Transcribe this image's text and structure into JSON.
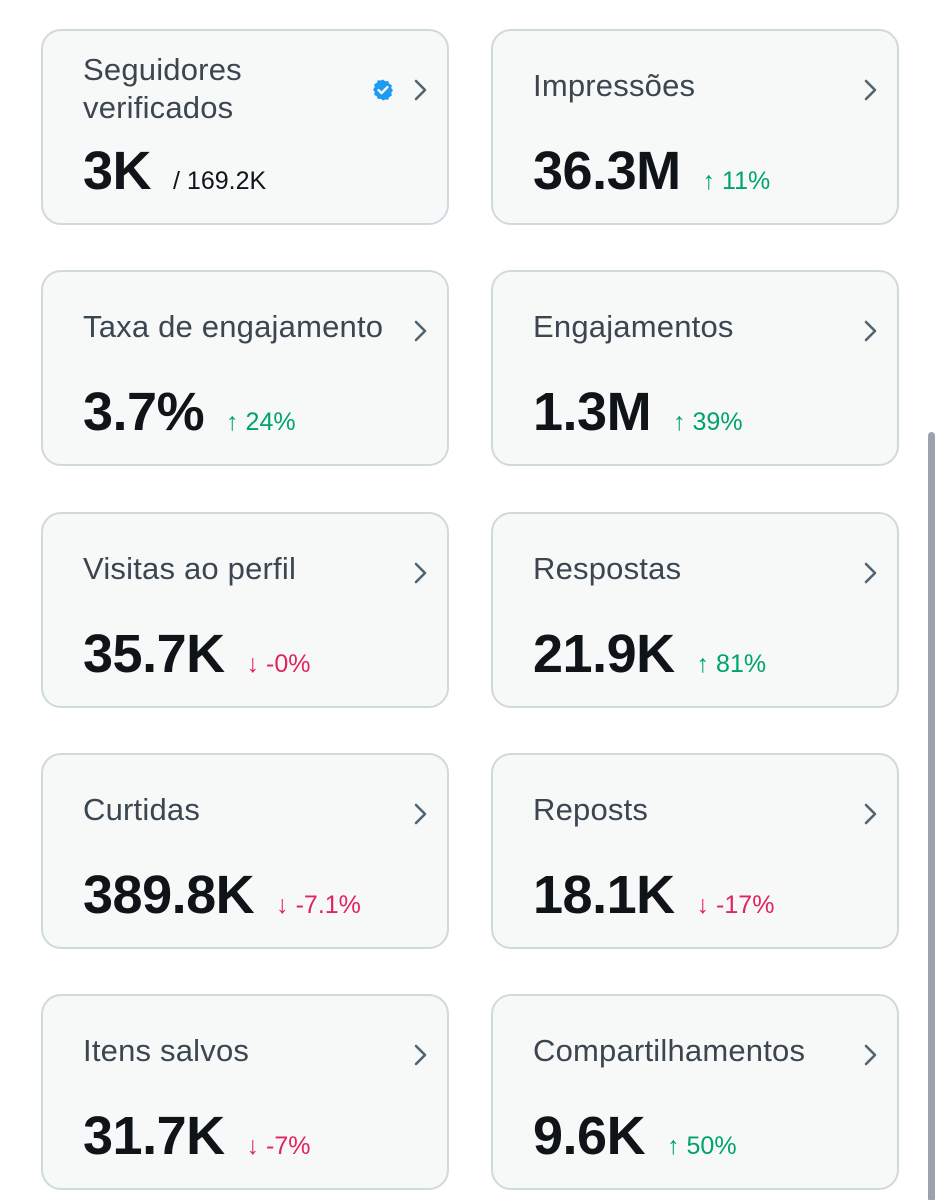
{
  "cards": [
    {
      "title": "Seguidores verificados",
      "value": "3K",
      "sub": "/ 169.2K",
      "change": "",
      "direction": "",
      "verified": true
    },
    {
      "title": "Impressões",
      "value": "36.3M",
      "sub": "",
      "change": "↑ 11%",
      "direction": "up"
    },
    {
      "title": "Taxa de engajamento",
      "value": "3.7%",
      "sub": "",
      "change": "↑ 24%",
      "direction": "up"
    },
    {
      "title": "Engajamentos",
      "value": "1.3M",
      "sub": "",
      "change": "↑ 39%",
      "direction": "up"
    },
    {
      "title": "Visitas ao perfil",
      "value": "35.7K",
      "sub": "",
      "change": "↓ -0%",
      "direction": "down"
    },
    {
      "title": "Respostas",
      "value": "21.9K",
      "sub": "",
      "change": "↑ 81%",
      "direction": "up"
    },
    {
      "title": "Curtidas",
      "value": "389.8K",
      "sub": "",
      "change": "↓ -7.1%",
      "direction": "down"
    },
    {
      "title": "Reposts",
      "value": "18.1K",
      "sub": "",
      "change": "↓ -17%",
      "direction": "down"
    },
    {
      "title": "Itens salvos",
      "value": "31.7K",
      "sub": "",
      "change": "↓ -7%",
      "direction": "down"
    },
    {
      "title": "Compartilhamentos",
      "value": "9.6K",
      "sub": "",
      "change": "↑ 50%",
      "direction": "up"
    }
  ],
  "colors": {
    "up": "#00a36c",
    "down": "#e0245e",
    "verified": "#1d9bf0"
  },
  "icons": {
    "chevron": "chevron-right-icon",
    "verified": "verified-badge-icon"
  }
}
